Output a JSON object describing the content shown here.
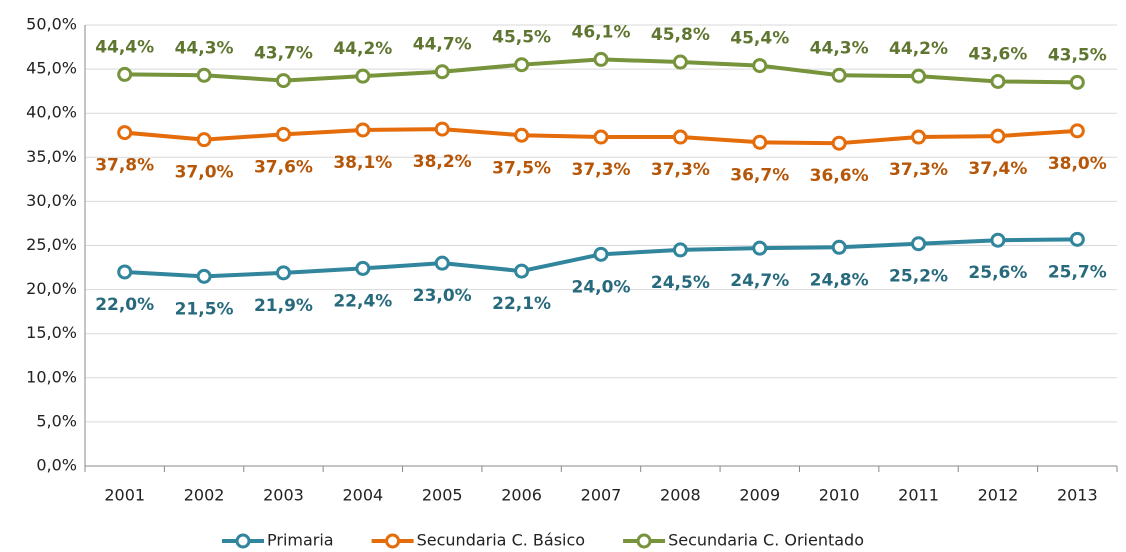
{
  "chart_data": {
    "type": "line",
    "categories": [
      "2001",
      "2002",
      "2003",
      "2004",
      "2005",
      "2006",
      "2007",
      "2008",
      "2009",
      "2010",
      "2011",
      "2012",
      "2013"
    ],
    "series": [
      {
        "name": "Primaria",
        "color": "#31859c",
        "values": [
          22.0,
          21.5,
          21.9,
          22.4,
          23.0,
          22.1,
          24.0,
          24.5,
          24.7,
          24.8,
          25.2,
          25.6,
          25.7
        ],
        "value_labels": [
          "22,0%",
          "21,5%",
          "21,9%",
          "22,4%",
          "23,0%",
          "22,1%",
          "24,0%",
          "24,5%",
          "24,7%",
          "24,8%",
          "25,2%",
          "25,6%",
          "25,7%"
        ]
      },
      {
        "name": "Secundaria C. Básico",
        "color": "#e46c0a",
        "values": [
          37.8,
          37.0,
          37.6,
          38.1,
          38.2,
          37.5,
          37.3,
          37.3,
          36.7,
          36.6,
          37.3,
          37.4,
          38.0
        ],
        "value_labels": [
          "37,8%",
          "37,0%",
          "37,6%",
          "38,1%",
          "38,2%",
          "37,5%",
          "37,3%",
          "37,3%",
          "36,7%",
          "36,6%",
          "37,3%",
          "37,4%",
          "38,0%"
        ]
      },
      {
        "name": "Secundaria C. Orientado",
        "color": "#77933c",
        "values": [
          44.4,
          44.3,
          43.7,
          44.2,
          44.7,
          45.5,
          46.1,
          45.8,
          45.4,
          44.3,
          44.2,
          43.6,
          43.5
        ],
        "value_labels": [
          "44,4%",
          "44,3%",
          "43,7%",
          "44,2%",
          "44,7%",
          "45,5%",
          "46,1%",
          "45,8%",
          "45,4%",
          "44,3%",
          "44,2%",
          "43,6%",
          "43,5%"
        ]
      }
    ],
    "ylim": [
      0,
      50
    ],
    "yticks": [
      {
        "value": 0,
        "label": "0,0%"
      },
      {
        "value": 5,
        "label": "5,0%"
      },
      {
        "value": 10,
        "label": "10,0%"
      },
      {
        "value": 15,
        "label": "15,0%"
      },
      {
        "value": 20,
        "label": "20,0%"
      },
      {
        "value": 25,
        "label": "25,0%"
      },
      {
        "value": 30,
        "label": "30,0%"
      },
      {
        "value": 35,
        "label": "35,0%"
      },
      {
        "value": 40,
        "label": "40,0%"
      },
      {
        "value": 45,
        "label": "45,0%"
      },
      {
        "value": 50,
        "label": "50,0%"
      }
    ],
    "grid": true,
    "legend": "bottom"
  }
}
